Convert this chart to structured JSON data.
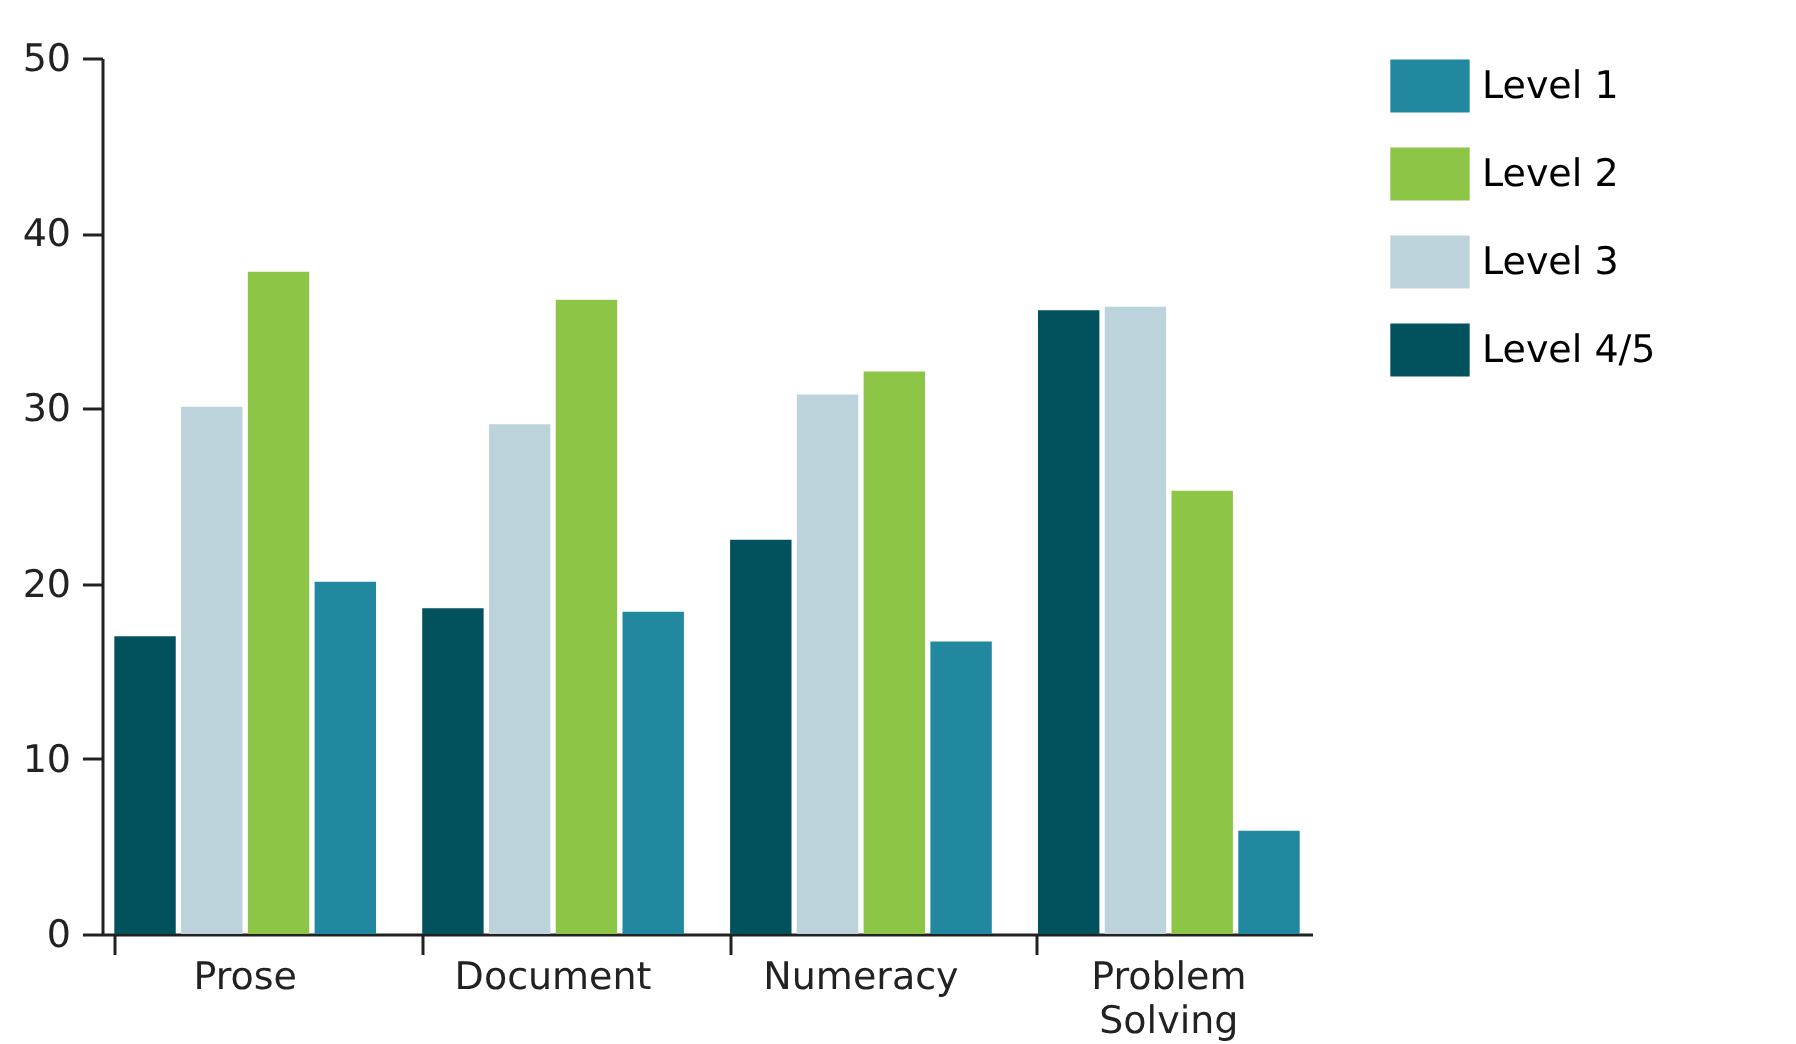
{
  "chart_data": {
    "type": "bar",
    "categories": [
      "Prose",
      "Document",
      "Numeracy",
      "Problem Solving"
    ],
    "series": [
      {
        "name": "Level 1",
        "color": "#2188a0",
        "values": [
          20.1,
          18.4,
          16.7,
          5.9
        ]
      },
      {
        "name": "Level 2",
        "color": "#8dc646",
        "values": [
          37.8,
          36.2,
          32.1,
          25.3
        ]
      },
      {
        "name": "Level 3",
        "color": "#bcd3db",
        "values": [
          30.1,
          29.1,
          30.8,
          35.8
        ]
      },
      {
        "name": "Level 4/5",
        "color": "#01525c",
        "values": [
          17.0,
          18.6,
          22.5,
          35.6
        ]
      }
    ],
    "ylim": [
      0,
      50
    ],
    "yticks": [
      0,
      10,
      20,
      30,
      40,
      50
    ],
    "grid": false,
    "legend": "top right"
  }
}
